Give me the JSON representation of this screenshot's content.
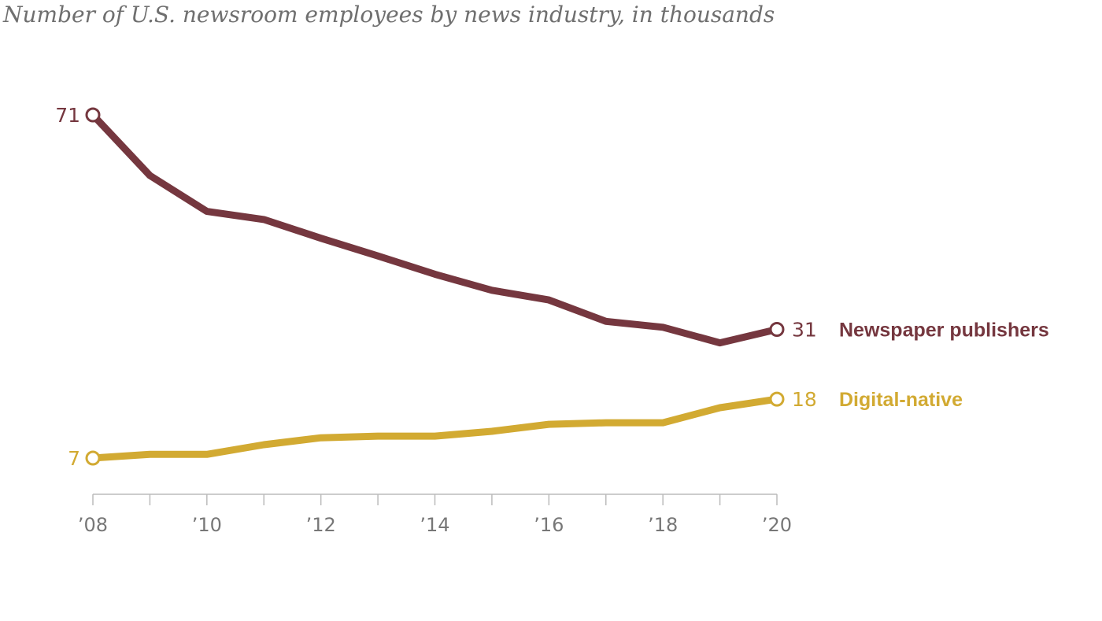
{
  "chart_data": {
    "type": "line",
    "title": "Number of U.S. newsroom employees by news industry, in thousands",
    "xlabel": "",
    "ylabel": "",
    "x": [
      2008,
      2009,
      2010,
      2011,
      2012,
      2013,
      2014,
      2015,
      2016,
      2017,
      2018,
      2019,
      2020
    ],
    "xtick_values": [
      2008,
      2010,
      2012,
      2014,
      2016,
      2018,
      2020
    ],
    "xtick_labels": [
      "’08",
      "’10",
      "’12",
      "’14",
      "’16",
      "’18",
      "’20"
    ],
    "xlim": [
      2008,
      2020
    ],
    "ylim": [
      0,
      71
    ],
    "grid": false,
    "series": [
      {
        "name": "Newspaper publishers",
        "color": "#75373f",
        "values": [
          71,
          59.7,
          53,
          51.5,
          48,
          44.7,
          41.3,
          38.3,
          36.5,
          32.5,
          31.4,
          28.5,
          31
        ],
        "start_label": "71",
        "end_label": "31"
      },
      {
        "name": "Digital-native",
        "color": "#d2aa32",
        "values": [
          7,
          7.7,
          7.7,
          9.5,
          10.8,
          11.1,
          11.1,
          12,
          13.3,
          13.6,
          13.6,
          16.4,
          18
        ],
        "start_label": "7",
        "end_label": "18"
      }
    ]
  }
}
